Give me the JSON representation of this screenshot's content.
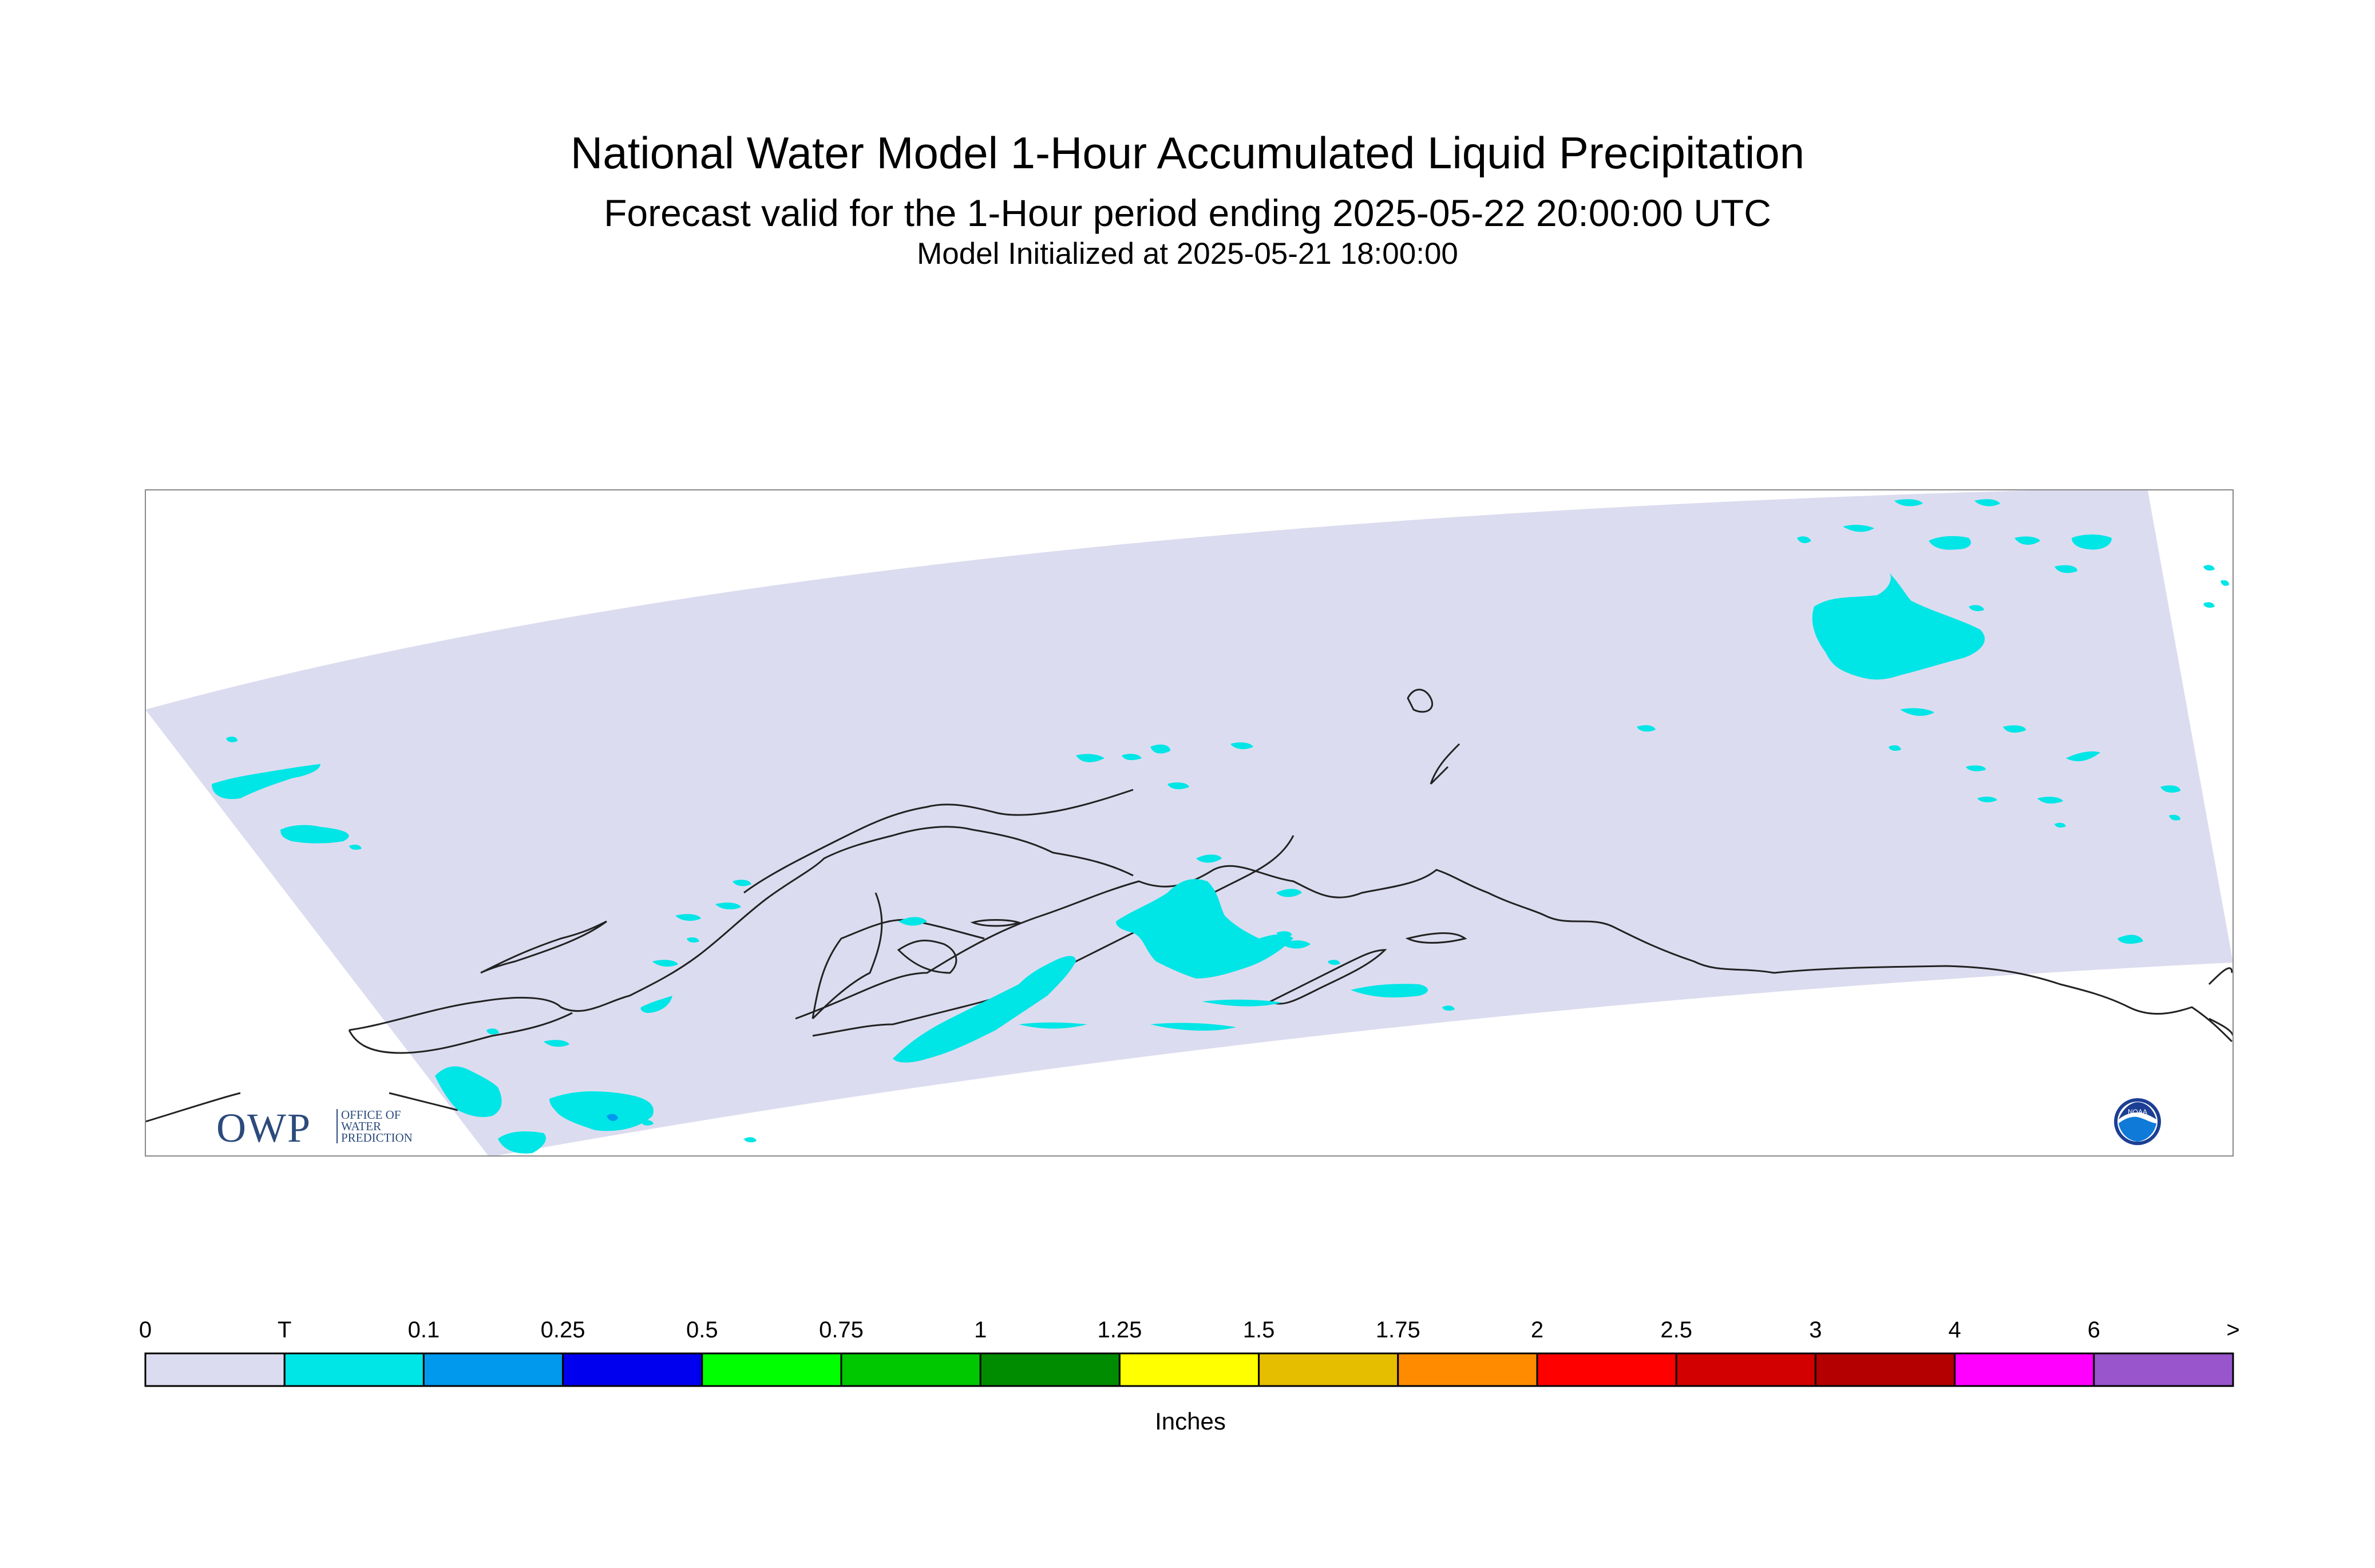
{
  "titles": {
    "main": "National Water Model 1-Hour Accumulated Liquid Precipitation",
    "sub": "Forecast valid for the 1-Hour period ending 2025-05-22 20:00:00 UTC",
    "init": "Model Initialized at 2025-05-21 18:00:00"
  },
  "legend": {
    "unit": "Inches",
    "labels": [
      "0",
      "T",
      "0.1",
      "0.25",
      "0.5",
      "0.75",
      "1",
      "1.25",
      "1.5",
      "1.75",
      "2",
      "2.5",
      "3",
      "4",
      "6",
      ">"
    ],
    "colors": [
      "#dcdcf0",
      "#00e5e5",
      "#0099ee",
      "#0000ee",
      "#00ff00",
      "#00c800",
      "#008c00",
      "#ffff00",
      "#e6be00",
      "#ff8c00",
      "#ff0000",
      "#d20000",
      "#b40000",
      "#ff00ff",
      "#9955cc"
    ]
  },
  "map": {
    "domain_fill": "#dcdcf0",
    "precip_fill": "#00e5e5",
    "moderate_fill": "#0099ee",
    "coast_stroke": "#222222"
  },
  "logos": {
    "owp_big": "OWP",
    "owp_small": [
      "OFFICE OF",
      "WATER",
      "PREDICTION"
    ],
    "noaa_text": "NOAA",
    "noaa_icon": "noaa-logo-icon"
  }
}
